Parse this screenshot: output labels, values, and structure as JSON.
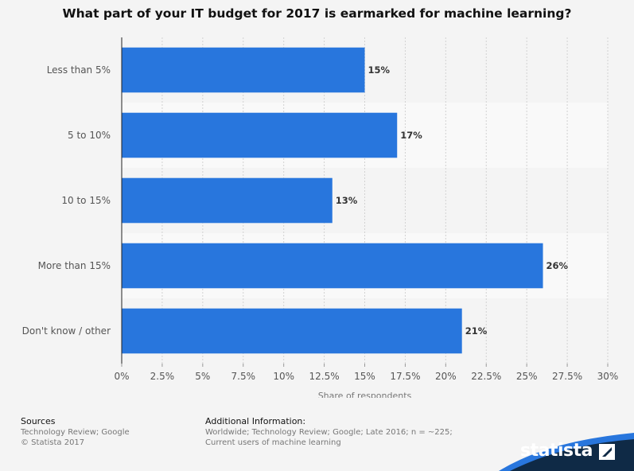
{
  "chart_data": {
    "type": "bar",
    "orientation": "horizontal",
    "title": "What part of your IT budget for 2017 is earmarked for machine learning?",
    "categories": [
      "Less than 5%",
      "5 to 10%",
      "10 to 15%",
      "More than 15%",
      "Don't know / other"
    ],
    "values": [
      15,
      17,
      13,
      26,
      21
    ],
    "value_labels": [
      "15%",
      "17%",
      "13%",
      "26%",
      "21%"
    ],
    "xlabel": "Share of respondents",
    "ylabel": "",
    "xlim": [
      0,
      30
    ],
    "xticks": [
      0,
      2.5,
      5,
      7.5,
      10,
      12.5,
      15,
      17.5,
      20,
      22.5,
      25,
      27.5,
      30
    ],
    "xtick_labels": [
      "0%",
      "2.5%",
      "5%",
      "7.5%",
      "10%",
      "12.5%",
      "15%",
      "17.5%",
      "20%",
      "22.5%",
      "25%",
      "27.5%",
      "30%"
    ],
    "grid": true,
    "bar_color": "#2876dd"
  },
  "footer": {
    "sources_label": "Sources",
    "sources_line1": "Technology Review; Google",
    "sources_line2": "© Statista 2017",
    "additional_label": "Additional Information:",
    "additional_line1": "Worldwide; Technology Review; Google; Late 2016; n = ~225;",
    "additional_line2": "Current users of machine learning"
  },
  "brand": {
    "name": "statista",
    "band_color": "#0f2a46",
    "accent_color": "#2876dd"
  }
}
